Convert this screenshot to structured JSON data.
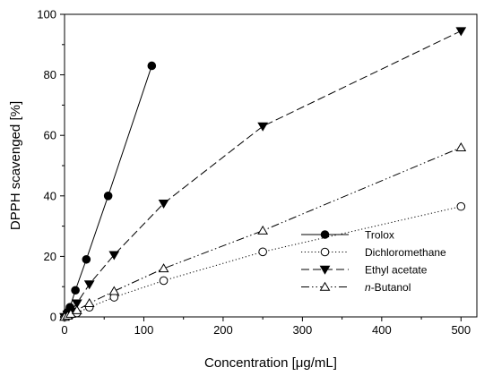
{
  "chart_data": {
    "type": "line",
    "xlabel": "Concentration [μg/mL]",
    "ylabel": "DPPH scavenged [%]",
    "xlim": [
      0,
      520
    ],
    "ylim": [
      0,
      100
    ],
    "xticks": [
      0,
      100,
      200,
      300,
      400,
      500
    ],
    "yticks": [
      0,
      20,
      40,
      60,
      80,
      100
    ],
    "grid": false,
    "legend_position": "bottom-right",
    "series": [
      {
        "name": "Trolox",
        "marker": "filled-circle",
        "line_style": "solid",
        "x": [
          0,
          3.4,
          6.9,
          13.7,
          27.5,
          55,
          110
        ],
        "y": [
          0,
          1.5,
          3.2,
          8.8,
          19,
          40,
          83
        ]
      },
      {
        "name": "Dichloromethane",
        "marker": "open-circle",
        "line_style": "dotted",
        "x": [
          0,
          3.9,
          7.8,
          15.6,
          31.3,
          62.5,
          125,
          250,
          500
        ],
        "y": [
          0,
          0.3,
          0.7,
          1.3,
          3.2,
          6.5,
          12,
          21.5,
          36.5
        ]
      },
      {
        "name": "Ethyl acetate",
        "marker": "filled-triangle-down",
        "line_style": "dashed",
        "x": [
          0,
          3.9,
          7.8,
          15.6,
          31.3,
          62.5,
          125,
          250,
          500
        ],
        "y": [
          0,
          0.8,
          1.8,
          4.5,
          10.8,
          20.5,
          37.5,
          63,
          94.5
        ]
      },
      {
        "name": "n-Butanol",
        "name_prefix": "n",
        "name_suffix": "-Butanol",
        "marker": "open-triangle-up",
        "line_style": "dash-dot-dot",
        "x": [
          0,
          3.9,
          7.8,
          15.6,
          31.3,
          62.5,
          125,
          250,
          500
        ],
        "y": [
          0,
          0.4,
          1,
          2.2,
          4.5,
          8.5,
          16,
          28.5,
          56
        ]
      }
    ]
  }
}
